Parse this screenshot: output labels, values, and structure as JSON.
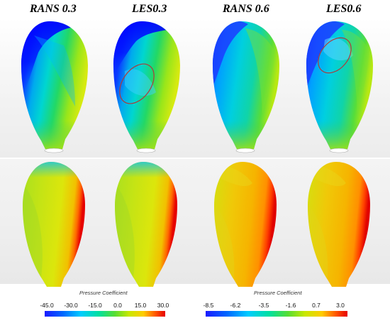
{
  "columns": [
    {
      "title": "RANS 0.3"
    },
    {
      "title": "LES0.3"
    },
    {
      "title": "RANS 0.6"
    },
    {
      "title": "LES0.6"
    }
  ],
  "colorbars": [
    {
      "title": "Pressure Coefficient",
      "ticks": [
        "-45.0",
        "-30.0",
        "-15.0",
        "0.0",
        "15.0",
        "30.0"
      ]
    },
    {
      "title": "Pressure Coefficient",
      "ticks": [
        "-8.5",
        "-6.2",
        "-3.5",
        "-1.6",
        "0.7",
        "3.0"
      ]
    }
  ],
  "colors": {
    "colormap": [
      "#1a1aff",
      "#00aaff",
      "#00e5e5",
      "#33dd55",
      "#c8e800",
      "#ffcc00",
      "#ff5500",
      "#e60000"
    ],
    "highlight_ellipse": "#b03a3a"
  }
}
